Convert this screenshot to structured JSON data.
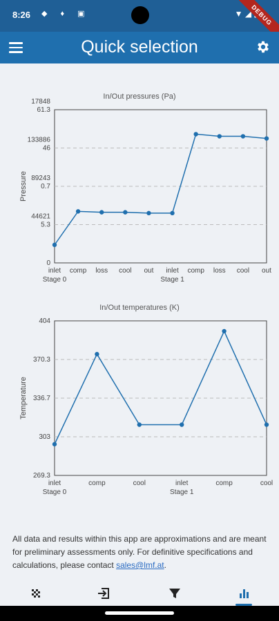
{
  "status_bar": {
    "time": "8:26",
    "debug_label": "DEBUG"
  },
  "app_bar": {
    "title": "Quick selection"
  },
  "colors": {
    "brand": "#1f6fae",
    "status": "#1f5f96",
    "line": "#1f6fae",
    "link": "#2a6bc2"
  },
  "chart_data": [
    {
      "type": "line",
      "title": "In/Out pressures (Pa)",
      "ylabel": "Pressure",
      "categories": [
        "inlet",
        "comp",
        "loss",
        "cool",
        "out",
        "inlet",
        "comp",
        "loss",
        "cool",
        "out"
      ],
      "stage_labels": [
        {
          "label": "Stage 0",
          "index": 0
        },
        {
          "label": "Stage 1",
          "index": 5
        }
      ],
      "y_ticks": [
        "0",
        "44621\n5.3",
        "89243\n0.7",
        "133886\n46",
        "17848\n61.3"
      ],
      "ylim": [
        0,
        178486
      ],
      "values": [
        21000,
        60000,
        59000,
        59000,
        58000,
        58000,
        150000,
        147500,
        147500,
        145000
      ],
      "grid": true
    },
    {
      "type": "line",
      "title": "In/Out temperatures (K)",
      "ylabel": "Temperature",
      "categories": [
        "inlet",
        "comp",
        "cool",
        "inlet",
        "comp",
        "cool"
      ],
      "stage_labels": [
        {
          "label": "Stage 0",
          "index": 0
        },
        {
          "label": "Stage 1",
          "index": 3
        }
      ],
      "y_ticks": [
        "269.3",
        "303",
        "336.7",
        "370.3",
        "404"
      ],
      "ylim": [
        269.3,
        404
      ],
      "values": [
        296.5,
        375,
        313.5,
        313.5,
        395,
        313.5
      ],
      "grid": true
    }
  ],
  "disclaimer": {
    "text": "All data and results within this app are approximations and are meant for preliminary assessments only. For definitive specifications and calculations, please contact ",
    "link": "sales@lmf.at",
    "suffix": "."
  },
  "bottom_nav": [
    {
      "icon": "checkered-flag-icon"
    },
    {
      "icon": "login-icon"
    },
    {
      "icon": "filter-icon"
    },
    {
      "icon": "bar-chart-icon",
      "active": true
    }
  ]
}
